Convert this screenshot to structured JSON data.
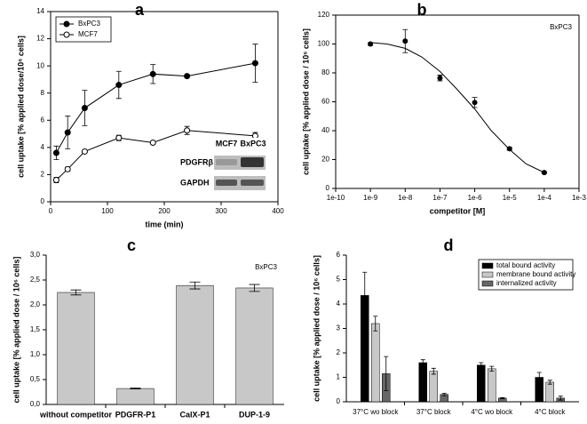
{
  "chart_data": [
    {
      "type": "line",
      "label": "a",
      "xlabel": "time (min)",
      "ylabel": "cell uptake [% applied dose/10⁶ cells]",
      "x": [
        10,
        30,
        60,
        120,
        180,
        240,
        360
      ],
      "series": [
        {
          "name": "BxPC3",
          "color": "#000000",
          "marker_fill": "#000000",
          "values": [
            3.6,
            5.1,
            6.9,
            8.6,
            9.4,
            9.25,
            10.2
          ],
          "errors": [
            0.5,
            1.2,
            1.3,
            1.0,
            0.7,
            0.1,
            1.4
          ]
        },
        {
          "name": "MCF7",
          "color": "#000000",
          "marker_fill": "#ffffff",
          "values": [
            1.6,
            2.4,
            3.7,
            4.7,
            4.35,
            5.25,
            4.85
          ],
          "errors": [
            0.2,
            0.15,
            0.1,
            0.2,
            0.05,
            0.3,
            0.25
          ]
        }
      ],
      "xlim": [
        0,
        400
      ],
      "xticks": [
        0,
        100,
        200,
        300,
        400
      ],
      "ylim": [
        0,
        14
      ],
      "yticks": [
        0,
        2,
        4,
        6,
        8,
        10,
        12,
        14
      ],
      "legend": "upper left",
      "inset": {
        "columns": [
          "MCF7",
          "BxPC3"
        ],
        "rows": [
          "PDGFRβ",
          "GAPDH"
        ]
      }
    },
    {
      "type": "scatter",
      "label": "b",
      "annotation": "BxPC3",
      "xlabel": "competitor [M]",
      "ylabel": "cell uptake [% applied dose / 10⁶ cells]",
      "xscale": "log",
      "color": "#000000",
      "x": [
        1e-09,
        1e-08,
        1e-07,
        1e-06,
        1e-05,
        0.0001
      ],
      "values": [
        100,
        102,
        76.5,
        59.5,
        27.5,
        11
      ],
      "errors": [
        1,
        8,
        2,
        3.5,
        1,
        0.5
      ],
      "fit": {
        "x": [
          1e-09,
          3e-09,
          1e-08,
          3e-08,
          1e-07,
          3e-07,
          1e-06,
          3e-06,
          1e-05,
          3e-05,
          0.0001
        ],
        "y": [
          101,
          100,
          97,
          91,
          81,
          69,
          55,
          40,
          27,
          17,
          11
        ]
      },
      "xlim": [
        1e-10,
        0.001
      ],
      "xticks": [
        {
          "value": 1e-10,
          "label": "1e-10"
        },
        {
          "value": 1e-09,
          "label": "1e-9"
        },
        {
          "value": 1e-08,
          "label": "1e-8"
        },
        {
          "value": 1e-07,
          "label": "1e-7"
        },
        {
          "value": 1e-06,
          "label": "1e-6"
        },
        {
          "value": 1e-05,
          "label": "1e-5"
        },
        {
          "value": 0.0001,
          "label": "1e-4"
        },
        {
          "value": 0.001,
          "label": "1e-3"
        }
      ],
      "ylim": [
        0,
        120
      ],
      "yticks": [
        0,
        20,
        40,
        60,
        80,
        100,
        120
      ]
    },
    {
      "type": "bar",
      "label": "c",
      "annotation": "BxPC3",
      "ylabel": "cell uptake [% applied dose / 10⁶ cells]",
      "categories": [
        "without competitor",
        "PDGFR-P1",
        "CalX-P1",
        "DUP-1-9"
      ],
      "values": [
        2.25,
        0.32,
        2.39,
        2.34
      ],
      "errors": [
        0.05,
        0.01,
        0.07,
        0.07
      ],
      "color": "#c8c8c8",
      "ylim": [
        0,
        3
      ],
      "yticks": [
        {
          "value": 0,
          "label": "0,0"
        },
        {
          "value": 0.5,
          "label": "0,5"
        },
        {
          "value": 1,
          "label": "1,0"
        },
        {
          "value": 1.5,
          "label": "1,5"
        },
        {
          "value": 2,
          "label": "2,0"
        },
        {
          "value": 2.5,
          "label": "2,5"
        },
        {
          "value": 3,
          "label": "3,0"
        }
      ]
    },
    {
      "type": "bar",
      "label": "d",
      "annotation": "BxPC3",
      "ylabel": "cell uptake [% applied dose / 10⁶ cells]",
      "categories": [
        "37°C wo block",
        "37°C block",
        "4°C wo block",
        "4°C block"
      ],
      "series": [
        {
          "name": "total bound activity",
          "color": "#000000",
          "values": [
            4.35,
            1.6,
            1.5,
            1.0
          ],
          "errors": [
            0.95,
            0.12,
            0.1,
            0.2
          ]
        },
        {
          "name": "membrane bound activity",
          "color": "#c8c8c8",
          "values": [
            3.2,
            1.25,
            1.35,
            0.8
          ],
          "errors": [
            0.3,
            0.12,
            0.1,
            0.08
          ]
        },
        {
          "name": "internalized activity",
          "color": "#666666",
          "values": [
            1.15,
            0.3,
            0.15,
            0.15
          ],
          "errors": [
            0.7,
            0.05,
            0.02,
            0.08
          ]
        }
      ],
      "ylim": [
        0,
        6
      ],
      "yticks": [
        0,
        1,
        2,
        3,
        4,
        5,
        6
      ],
      "legend": "upper right"
    }
  ]
}
